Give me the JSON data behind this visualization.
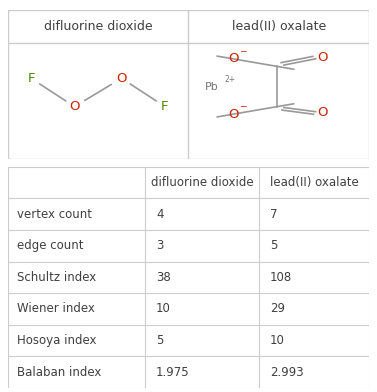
{
  "col_headers": [
    "",
    "difluorine dioxide",
    "lead(II) oxalate"
  ],
  "rows": [
    [
      "vertex count",
      "4",
      "7"
    ],
    [
      "edge count",
      "3",
      "5"
    ],
    [
      "Schultz index",
      "38",
      "108"
    ],
    [
      "Wiener index",
      "10",
      "29"
    ],
    [
      "Hosoya index",
      "5",
      "10"
    ],
    [
      "Balaban index",
      "1.975",
      "2.993"
    ]
  ],
  "mol_titles": [
    "difluorine dioxide",
    "lead(II) oxalate"
  ],
  "bg_color": "#ffffff",
  "border_color": "#cccccc",
  "text_color": "#404040",
  "red_color": "#cc2200",
  "green_color": "#4a8a00",
  "gray_color": "#777777"
}
